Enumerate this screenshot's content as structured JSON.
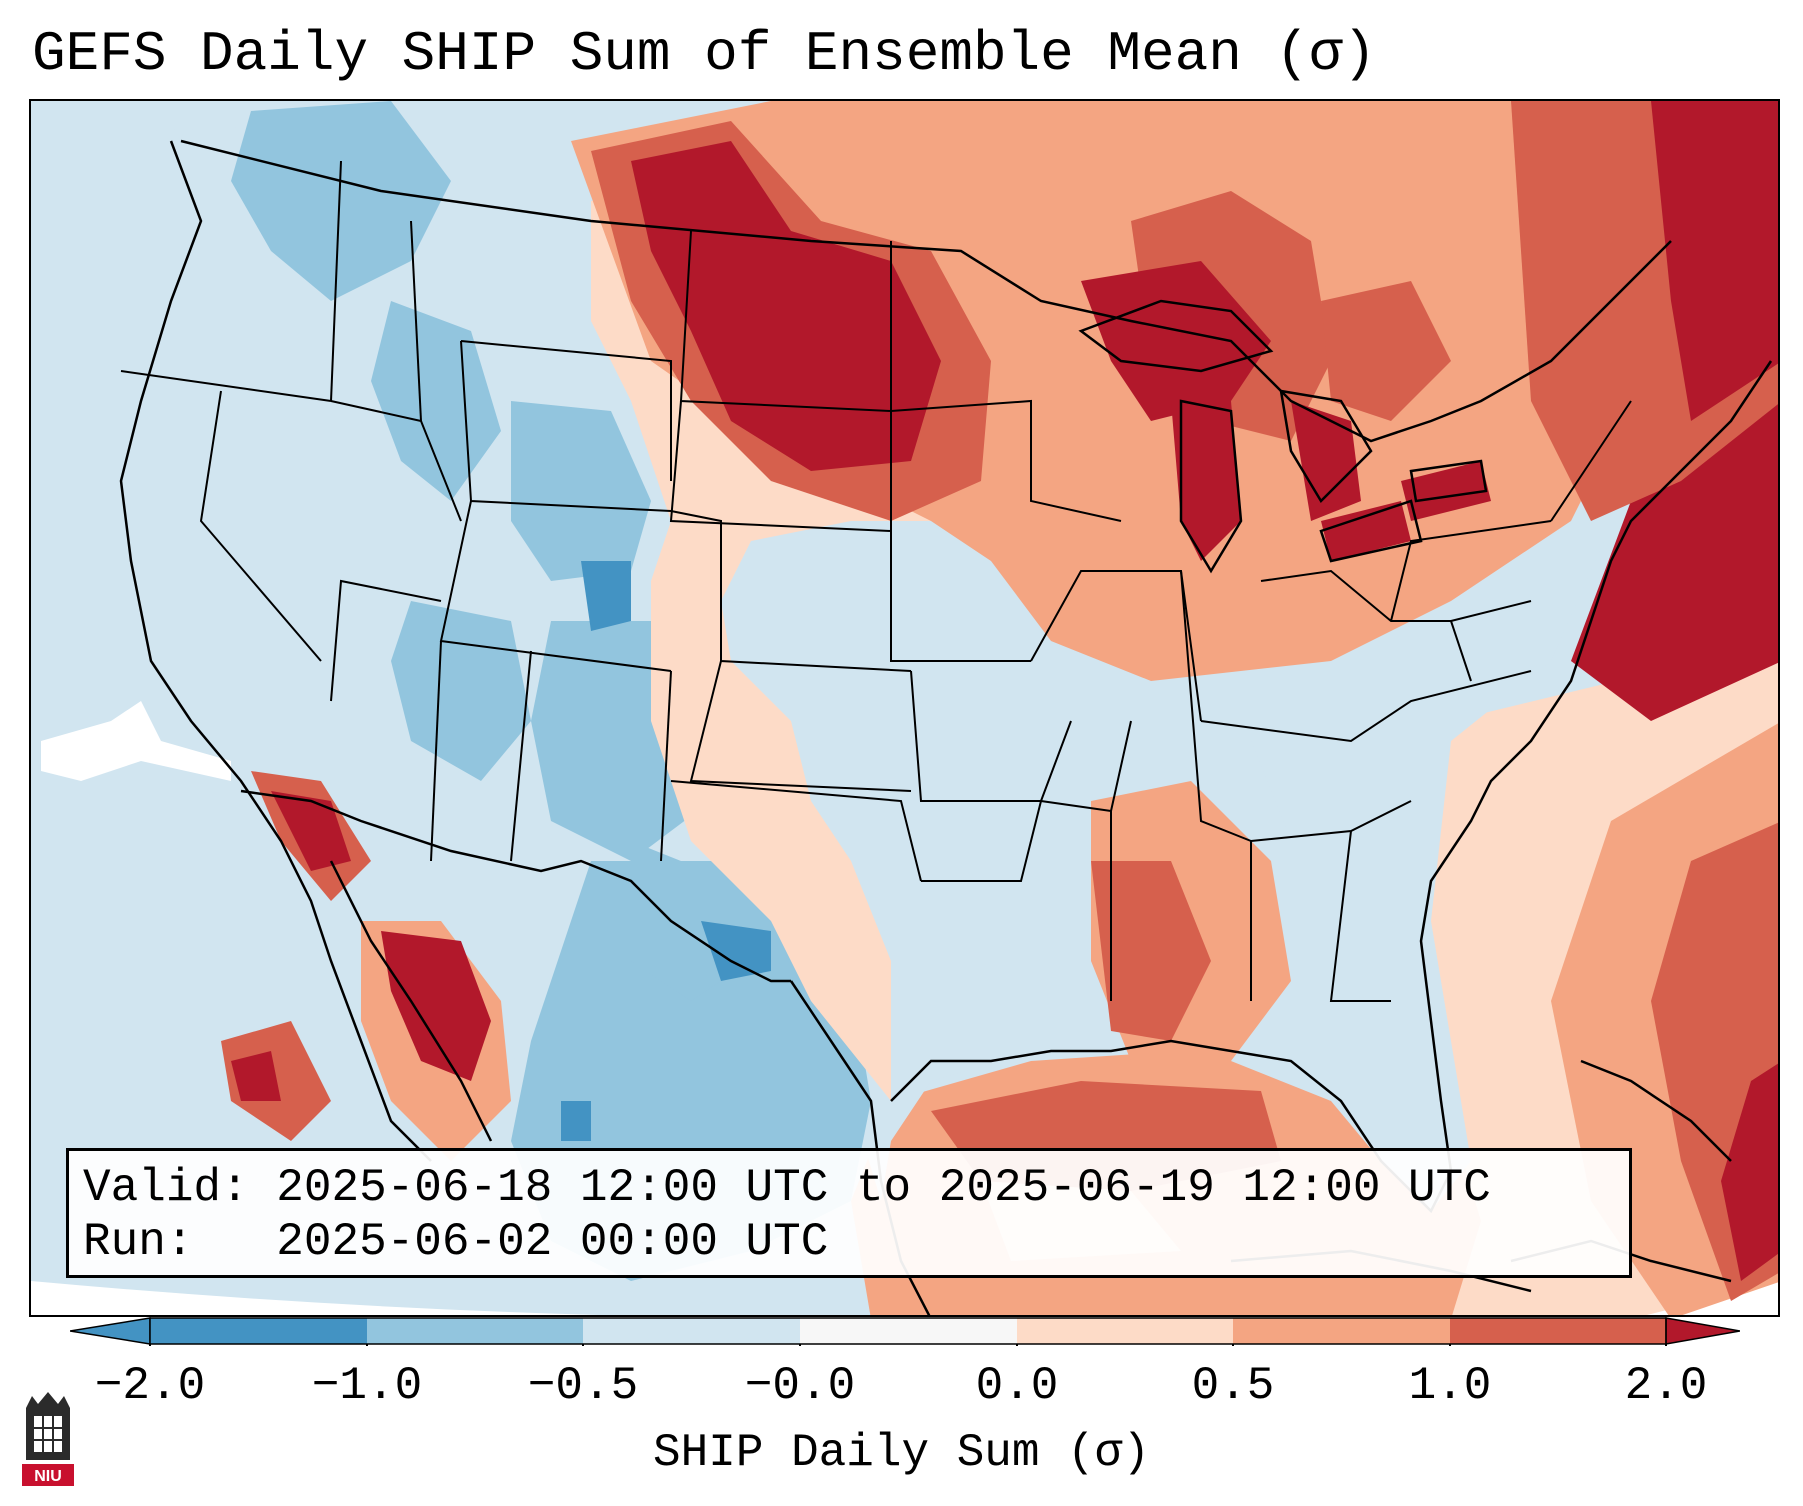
{
  "title": "GEFS Daily SHIP Sum of Ensemble Mean (σ)",
  "info": {
    "valid_label": "Valid:",
    "valid_value": "2025-06-18 12:00 UTC to 2025-06-19 12:00 UTC",
    "run_label": "Run:",
    "run_value": "2025-06-02 00:00 UTC"
  },
  "colorbar": {
    "label": "SHIP Daily Sum (σ)",
    "ticks": [
      "−2.0",
      "−1.0",
      "−0.5",
      "−0.0",
      "0.0",
      "0.5",
      "1.0",
      "2.0"
    ],
    "colors": [
      "#4393c3",
      "#92c5de",
      "#d1e5f0",
      "#f7f7f7",
      "#fddbc7",
      "#f4a582",
      "#d6604d",
      "#b2182b"
    ],
    "extend": "both"
  },
  "logo": {
    "text": "NIU",
    "icon": "niu-logo-icon"
  },
  "map": {
    "projection": "lambert-conformal",
    "region": "contiguous-united-states",
    "colors": {
      "ocean": "#d1e5f0",
      "deep_blue": "#4393c3",
      "mid_blue": "#92c5de",
      "light_blue": "#d1e5f0",
      "light_red": "#fddbc7",
      "mid_red": "#f4a582",
      "red": "#d6604d",
      "dark_red": "#b2182b",
      "borders": "#000000"
    }
  }
}
